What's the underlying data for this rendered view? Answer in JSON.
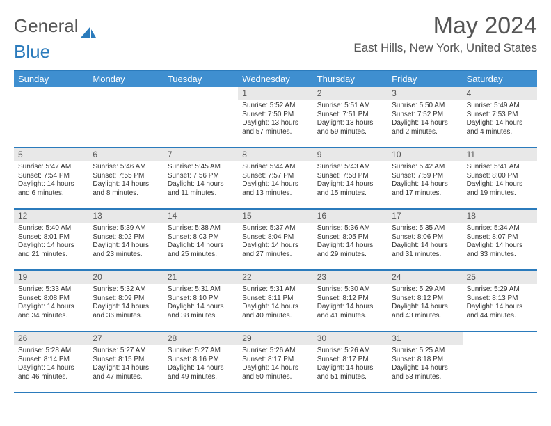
{
  "brand": {
    "part1": "General",
    "part2": "Blue"
  },
  "title": "May 2024",
  "location": "East Hills, New York, United States",
  "colors": {
    "header_bg": "#3f8fd0",
    "border": "#2b7bbc",
    "daynum_bg": "#e8e8e8",
    "text": "#333333",
    "muted": "#555555",
    "white": "#ffffff"
  },
  "day_labels": [
    "Sunday",
    "Monday",
    "Tuesday",
    "Wednesday",
    "Thursday",
    "Friday",
    "Saturday"
  ],
  "weeks": [
    [
      {
        "empty": true
      },
      {
        "empty": true
      },
      {
        "empty": true
      },
      {
        "n": "1",
        "sr": "5:52 AM",
        "ss": "7:50 PM",
        "dl": "Daylight: 13 hours and 57 minutes."
      },
      {
        "n": "2",
        "sr": "5:51 AM",
        "ss": "7:51 PM",
        "dl": "Daylight: 13 hours and 59 minutes."
      },
      {
        "n": "3",
        "sr": "5:50 AM",
        "ss": "7:52 PM",
        "dl": "Daylight: 14 hours and 2 minutes."
      },
      {
        "n": "4",
        "sr": "5:49 AM",
        "ss": "7:53 PM",
        "dl": "Daylight: 14 hours and 4 minutes."
      }
    ],
    [
      {
        "n": "5",
        "sr": "5:47 AM",
        "ss": "7:54 PM",
        "dl": "Daylight: 14 hours and 6 minutes."
      },
      {
        "n": "6",
        "sr": "5:46 AM",
        "ss": "7:55 PM",
        "dl": "Daylight: 14 hours and 8 minutes."
      },
      {
        "n": "7",
        "sr": "5:45 AM",
        "ss": "7:56 PM",
        "dl": "Daylight: 14 hours and 11 minutes."
      },
      {
        "n": "8",
        "sr": "5:44 AM",
        "ss": "7:57 PM",
        "dl": "Daylight: 14 hours and 13 minutes."
      },
      {
        "n": "9",
        "sr": "5:43 AM",
        "ss": "7:58 PM",
        "dl": "Daylight: 14 hours and 15 minutes."
      },
      {
        "n": "10",
        "sr": "5:42 AM",
        "ss": "7:59 PM",
        "dl": "Daylight: 14 hours and 17 minutes."
      },
      {
        "n": "11",
        "sr": "5:41 AM",
        "ss": "8:00 PM",
        "dl": "Daylight: 14 hours and 19 minutes."
      }
    ],
    [
      {
        "n": "12",
        "sr": "5:40 AM",
        "ss": "8:01 PM",
        "dl": "Daylight: 14 hours and 21 minutes."
      },
      {
        "n": "13",
        "sr": "5:39 AM",
        "ss": "8:02 PM",
        "dl": "Daylight: 14 hours and 23 minutes."
      },
      {
        "n": "14",
        "sr": "5:38 AM",
        "ss": "8:03 PM",
        "dl": "Daylight: 14 hours and 25 minutes."
      },
      {
        "n": "15",
        "sr": "5:37 AM",
        "ss": "8:04 PM",
        "dl": "Daylight: 14 hours and 27 minutes."
      },
      {
        "n": "16",
        "sr": "5:36 AM",
        "ss": "8:05 PM",
        "dl": "Daylight: 14 hours and 29 minutes."
      },
      {
        "n": "17",
        "sr": "5:35 AM",
        "ss": "8:06 PM",
        "dl": "Daylight: 14 hours and 31 minutes."
      },
      {
        "n": "18",
        "sr": "5:34 AM",
        "ss": "8:07 PM",
        "dl": "Daylight: 14 hours and 33 minutes."
      }
    ],
    [
      {
        "n": "19",
        "sr": "5:33 AM",
        "ss": "8:08 PM",
        "dl": "Daylight: 14 hours and 34 minutes."
      },
      {
        "n": "20",
        "sr": "5:32 AM",
        "ss": "8:09 PM",
        "dl": "Daylight: 14 hours and 36 minutes."
      },
      {
        "n": "21",
        "sr": "5:31 AM",
        "ss": "8:10 PM",
        "dl": "Daylight: 14 hours and 38 minutes."
      },
      {
        "n": "22",
        "sr": "5:31 AM",
        "ss": "8:11 PM",
        "dl": "Daylight: 14 hours and 40 minutes."
      },
      {
        "n": "23",
        "sr": "5:30 AM",
        "ss": "8:12 PM",
        "dl": "Daylight: 14 hours and 41 minutes."
      },
      {
        "n": "24",
        "sr": "5:29 AM",
        "ss": "8:12 PM",
        "dl": "Daylight: 14 hours and 43 minutes."
      },
      {
        "n": "25",
        "sr": "5:29 AM",
        "ss": "8:13 PM",
        "dl": "Daylight: 14 hours and 44 minutes."
      }
    ],
    [
      {
        "n": "26",
        "sr": "5:28 AM",
        "ss": "8:14 PM",
        "dl": "Daylight: 14 hours and 46 minutes."
      },
      {
        "n": "27",
        "sr": "5:27 AM",
        "ss": "8:15 PM",
        "dl": "Daylight: 14 hours and 47 minutes."
      },
      {
        "n": "28",
        "sr": "5:27 AM",
        "ss": "8:16 PM",
        "dl": "Daylight: 14 hours and 49 minutes."
      },
      {
        "n": "29",
        "sr": "5:26 AM",
        "ss": "8:17 PM",
        "dl": "Daylight: 14 hours and 50 minutes."
      },
      {
        "n": "30",
        "sr": "5:26 AM",
        "ss": "8:17 PM",
        "dl": "Daylight: 14 hours and 51 minutes."
      },
      {
        "n": "31",
        "sr": "5:25 AM",
        "ss": "8:18 PM",
        "dl": "Daylight: 14 hours and 53 minutes."
      },
      {
        "empty": true
      }
    ]
  ],
  "labels": {
    "sunrise_prefix": "Sunrise: ",
    "sunset_prefix": "Sunset: "
  }
}
